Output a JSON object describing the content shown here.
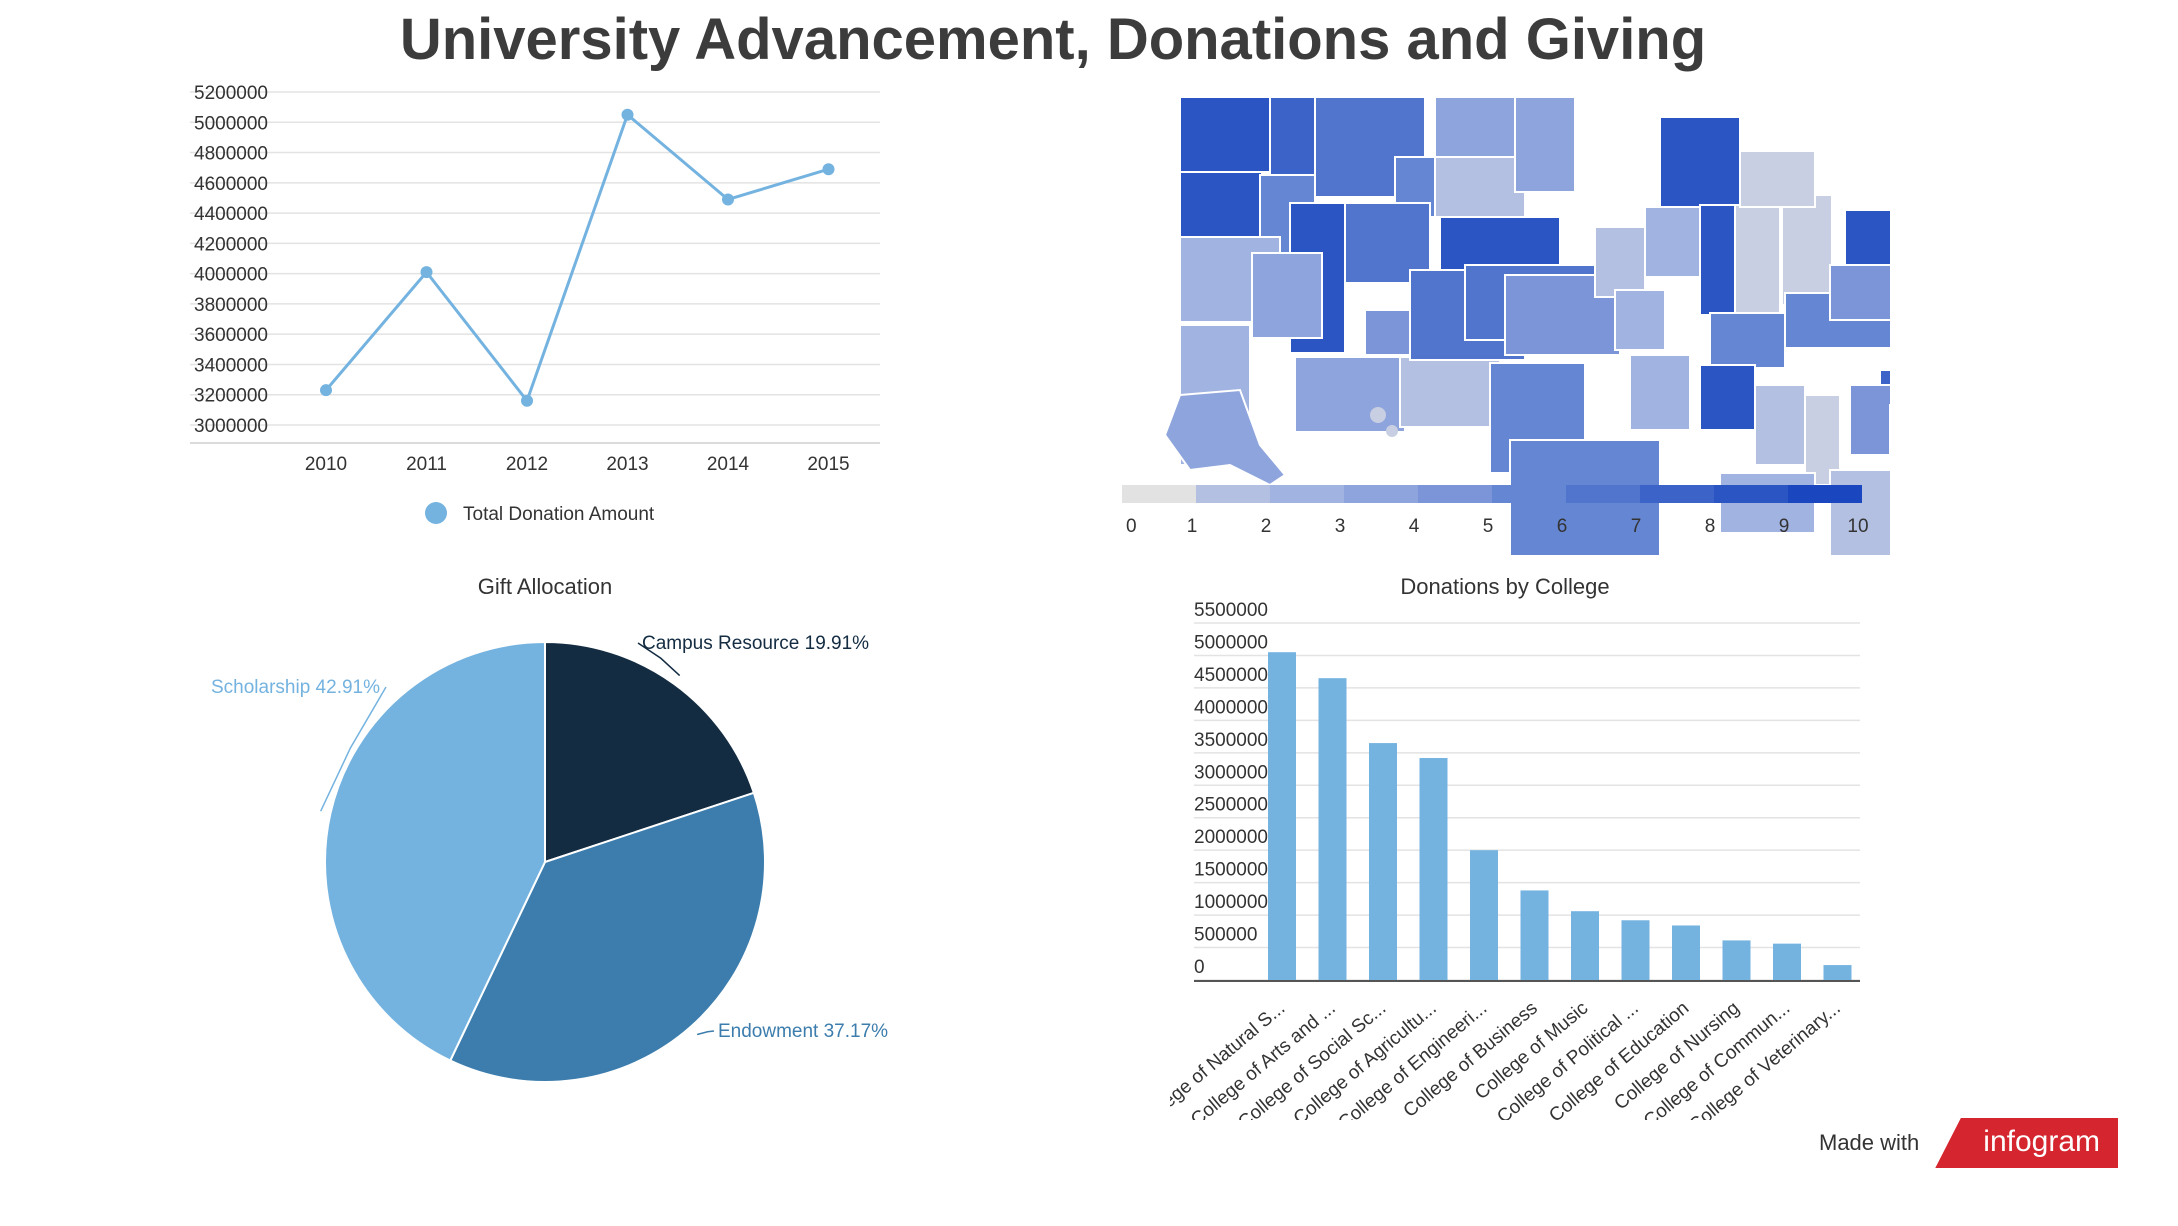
{
  "page": {
    "title": "University Advancement, Donations and Giving",
    "footer_text": "Made with",
    "brand": "infogram"
  },
  "colors": {
    "light_blue": "#74b3e0",
    "mid_blue": "#3c7dad",
    "navy": "#132c42",
    "map_scale": [
      "#e2e2e2",
      "#c9cfe2",
      "#b4c0e2",
      "#a1b3e0",
      "#8ea4dc",
      "#7b95d8",
      "#6587d3",
      "#5174cd",
      "#3c64c8",
      "#2a55c3",
      "#1a46bf"
    ]
  },
  "chart_data": [
    {
      "id": "line",
      "type": "line",
      "title": "",
      "x": [
        "2010",
        "2011",
        "2012",
        "2013",
        "2014",
        "2015"
      ],
      "series": [
        {
          "name": "Total Donation Amount",
          "values": [
            3230000,
            4010000,
            3160000,
            5050000,
            4490000,
            4690000
          ]
        }
      ],
      "yticks": [
        3000000,
        3200000,
        3400000,
        3600000,
        3800000,
        4000000,
        4200000,
        4400000,
        4600000,
        4800000,
        5000000,
        5200000
      ],
      "ylim": [
        3000000,
        5200000
      ],
      "grid": true,
      "legend": "bottom"
    },
    {
      "id": "map",
      "type": "heatmap",
      "title": "",
      "scale_labels": [
        "0",
        "1",
        "2",
        "3",
        "4",
        "5",
        "6",
        "7",
        "8",
        "9",
        "10"
      ],
      "note": "choropleth of US states, values 0-10"
    },
    {
      "id": "pie",
      "type": "pie",
      "title": "Gift   Allocation",
      "slices": [
        {
          "label": "Campus Resource",
          "value": 19.91,
          "text": "Campus Resource 19.91%"
        },
        {
          "label": "Endowment",
          "value": 37.17,
          "text": "Endowment 37.17%"
        },
        {
          "label": "Scholarship",
          "value": 42.91,
          "text": "Scholarship 42.91%"
        }
      ]
    },
    {
      "id": "bar",
      "type": "bar",
      "title": "Donations by College",
      "categories": [
        "College of Natural S...",
        "College of Arts and ...",
        "College of Social Sc...",
        "College of Agricultu...",
        "College of Engineeri...",
        "College of Business",
        "College of Music",
        "College of Political ...",
        "College of Education",
        "College of Nursing",
        "College of Commun...",
        "College of Veterinary..."
      ],
      "values": [
        5050000,
        4650000,
        3650000,
        3420000,
        2000000,
        1380000,
        1060000,
        920000,
        840000,
        610000,
        560000,
        230000
      ],
      "yticks": [
        0,
        500000,
        1000000,
        1500000,
        2000000,
        2500000,
        3000000,
        3500000,
        4000000,
        4500000,
        5000000,
        5500000
      ],
      "ylim": [
        0,
        5500000
      ],
      "grid": true
    }
  ]
}
